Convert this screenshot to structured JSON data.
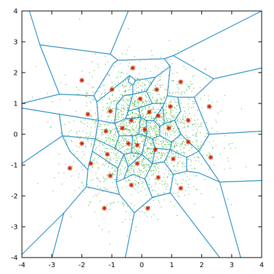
{
  "chart_data": {
    "type": "scatter",
    "title": "",
    "xlabel": "",
    "ylabel": "",
    "xlim": [
      -4,
      4
    ],
    "ylim": [
      -4,
      4
    ],
    "x_ticks": [
      -4,
      -3,
      -2,
      -1,
      0,
      1,
      2,
      3,
      4
    ],
    "y_ticks": [
      -4,
      -3,
      -2,
      -1,
      0,
      1,
      2,
      3,
      4
    ],
    "x_tick_labels": [
      "-4",
      "-3",
      "-2",
      "-1",
      "0",
      "1",
      "2",
      "3",
      "4"
    ],
    "y_tick_labels": [
      "-4",
      "-3",
      "-2",
      "-1",
      "0",
      "1",
      "2",
      "3",
      "4"
    ],
    "grid": false,
    "legend": "none",
    "colors": {
      "centroid": "#cc2200",
      "sample": "#22aa22",
      "voronoi_edge": "#2a8fc4"
    },
    "centroids": [
      {
        "x": -0.3,
        "y": 2.15
      },
      {
        "x": -2.0,
        "y": 1.75
      },
      {
        "x": 1.3,
        "y": 1.7
      },
      {
        "x": -1.0,
        "y": 1.45
      },
      {
        "x": 0.5,
        "y": 1.45
      },
      {
        "x": -0.05,
        "y": 1.15
      },
      {
        "x": 2.25,
        "y": 0.9
      },
      {
        "x": 0.95,
        "y": 0.9
      },
      {
        "x": -1.8,
        "y": 0.65
      },
      {
        "x": -1.05,
        "y": 0.75
      },
      {
        "x": 0.25,
        "y": 0.72
      },
      {
        "x": 0.55,
        "y": 0.6
      },
      {
        "x": -0.35,
        "y": 0.45
      },
      {
        "x": 1.55,
        "y": 0.45
      },
      {
        "x": -0.65,
        "y": 0.2
      },
      {
        "x": -1.2,
        "y": 0.1
      },
      {
        "x": 0.1,
        "y": 0.15
      },
      {
        "x": 0.9,
        "y": 0.2
      },
      {
        "x": -0.45,
        "y": -0.3
      },
      {
        "x": -0.15,
        "y": -0.35
      },
      {
        "x": 0.45,
        "y": -0.5
      },
      {
        "x": 1.55,
        "y": -0.25
      },
      {
        "x": -2.0,
        "y": -0.3
      },
      {
        "x": -1.15,
        "y": -0.65
      },
      {
        "x": 1.05,
        "y": -0.8
      },
      {
        "x": 2.3,
        "y": -0.75
      },
      {
        "x": -0.15,
        "y": -0.95
      },
      {
        "x": -1.7,
        "y": -0.95
      },
      {
        "x": -2.4,
        "y": -1.1
      },
      {
        "x": -1.05,
        "y": -1.35
      },
      {
        "x": 0.55,
        "y": -1.4
      },
      {
        "x": -0.35,
        "y": -1.65
      },
      {
        "x": 1.3,
        "y": -1.75
      },
      {
        "x": -1.25,
        "y": -2.4
      },
      {
        "x": 0.2,
        "y": -2.4
      }
    ],
    "voronoi_edges": [
      [
        [
          -3.75,
          4
        ],
        [
          -3.4,
          2.9
        ]
      ],
      [
        [
          -3.4,
          2.9
        ],
        [
          -1.05,
          2.6
        ]
      ],
      [
        [
          -1.05,
          2.6
        ],
        [
          -0.45,
          4
        ]
      ],
      [
        [
          -1.05,
          2.6
        ],
        [
          -0.8,
          2.4
        ]
      ],
      [
        [
          -0.8,
          2.4
        ],
        [
          -0.95,
          2.3
        ]
      ],
      [
        [
          -0.95,
          2.3
        ],
        [
          -1.6,
          1.25
        ]
      ],
      [
        [
          -3.4,
          2.9
        ],
        [
          -2.75,
          1.3
        ]
      ],
      [
        [
          -2.75,
          1.3
        ],
        [
          -4,
          1.0
        ]
      ],
      [
        [
          -2.75,
          1.3
        ],
        [
          -1.6,
          1.25
        ]
      ],
      [
        [
          -0.8,
          2.4
        ],
        [
          0.75,
          2.45
        ]
      ],
      [
        [
          0.75,
          2.45
        ],
        [
          1.05,
          2.55
        ]
      ],
      [
        [
          1.05,
          2.55
        ],
        [
          4,
          4
        ]
      ],
      [
        [
          1.05,
          2.55
        ],
        [
          2.4,
          1.8
        ]
      ],
      [
        [
          2.4,
          1.8
        ],
        [
          4,
          2.15
        ]
      ],
      [
        [
          0.75,
          2.45
        ],
        [
          0.95,
          2.2
        ]
      ],
      [
        [
          0.95,
          2.2
        ],
        [
          0.85,
          1.25
        ]
      ],
      [
        [
          -1.6,
          1.25
        ],
        [
          -1.5,
          1.05
        ]
      ],
      [
        [
          -1.5,
          1.05
        ],
        [
          -0.4,
          1.9
        ]
      ],
      [
        [
          -0.4,
          1.9
        ],
        [
          -0.45,
          1.7
        ]
      ],
      [
        [
          -0.45,
          1.7
        ],
        [
          -0.3,
          1.6
        ]
      ],
      [
        [
          -0.3,
          1.6
        ],
        [
          -0.2,
          1.75
        ]
      ],
      [
        [
          -0.2,
          1.75
        ],
        [
          0.45,
          1.85
        ]
      ],
      [
        [
          0.45,
          1.85
        ],
        [
          0.95,
          2.2
        ]
      ],
      [
        [
          -0.4,
          1.9
        ],
        [
          -0.2,
          1.75
        ]
      ],
      [
        [
          -1.5,
          1.05
        ],
        [
          -1.45,
          0.45
        ]
      ],
      [
        [
          -1.45,
          0.45
        ],
        [
          -2.75,
          0.65
        ]
      ],
      [
        [
          -2.75,
          0.65
        ],
        [
          -4,
          0.85
        ]
      ],
      [
        [
          -2.75,
          0.65
        ],
        [
          -2.65,
          -0.05
        ]
      ],
      [
        [
          -2.65,
          -0.05
        ],
        [
          -4,
          -0.95
        ]
      ],
      [
        [
          -2.65,
          -0.05
        ],
        [
          -1.55,
          -0.15
        ]
      ],
      [
        [
          -1.55,
          -0.15
        ],
        [
          -1.45,
          0.45
        ]
      ],
      [
        [
          2.4,
          1.8
        ],
        [
          1.75,
          1.2
        ]
      ],
      [
        [
          1.75,
          1.2
        ],
        [
          1.2,
          1.2
        ]
      ],
      [
        [
          1.75,
          1.2
        ],
        [
          2.25,
          0.0
        ]
      ],
      [
        [
          2.25,
          0.0
        ],
        [
          4,
          0.1
        ]
      ],
      [
        [
          2.25,
          0.0
        ],
        [
          1.9,
          -0.55
        ]
      ],
      [
        [
          1.9,
          -0.55
        ],
        [
          2.6,
          -1.55
        ]
      ],
      [
        [
          2.6,
          -1.55
        ],
        [
          4,
          -1.5
        ]
      ],
      [
        [
          2.6,
          -1.55
        ],
        [
          3.3,
          -4
        ]
      ],
      [
        [
          1.9,
          -0.55
        ],
        [
          1.5,
          -0.75
        ]
      ],
      [
        [
          1.5,
          -0.75
        ],
        [
          1.5,
          -1.2
        ]
      ],
      [
        [
          1.5,
          -1.2
        ],
        [
          1.9,
          -1.25
        ]
      ],
      [
        [
          1.9,
          -1.25
        ],
        [
          2.6,
          -1.55
        ]
      ],
      [
        [
          1.5,
          -1.2
        ],
        [
          1.05,
          -1.3
        ]
      ],
      [
        [
          1.05,
          -1.3
        ],
        [
          0.95,
          -1.9
        ]
      ],
      [
        [
          0.95,
          -1.9
        ],
        [
          2.6,
          -4
        ]
      ],
      [
        [
          0.95,
          -1.9
        ],
        [
          0.35,
          -2.05
        ]
      ],
      [
        [
          0.35,
          -2.05
        ],
        [
          -0.25,
          -2.55
        ]
      ],
      [
        [
          -0.25,
          -2.55
        ],
        [
          -0.55,
          -4
        ]
      ],
      [
        [
          -0.25,
          -2.55
        ],
        [
          -0.75,
          -1.95
        ]
      ],
      [
        [
          -0.75,
          -1.95
        ],
        [
          -1.85,
          -1.7
        ]
      ],
      [
        [
          -1.85,
          -1.7
        ],
        [
          -2.6,
          -2.55
        ]
      ],
      [
        [
          -2.6,
          -2.55
        ],
        [
          -4,
          -3.9
        ]
      ],
      [
        [
          -2.6,
          -2.55
        ],
        [
          -3.0,
          -4
        ]
      ],
      [
        [
          -1.85,
          -1.7
        ],
        [
          -1.8,
          -1.15
        ]
      ],
      [
        [
          -1.8,
          -1.15
        ],
        [
          -1.65,
          -0.55
        ]
      ],
      [
        [
          -1.65,
          -0.55
        ],
        [
          -1.55,
          -0.15
        ]
      ],
      [
        [
          -1.8,
          -1.15
        ],
        [
          -2.4,
          -0.55
        ]
      ],
      [
        [
          -2.4,
          -0.55
        ],
        [
          -2.65,
          -0.05
        ]
      ],
      [
        [
          -0.75,
          -1.95
        ],
        [
          -0.85,
          -1.55
        ]
      ],
      [
        [
          0.35,
          -2.05
        ],
        [
          0.1,
          -1.45
        ]
      ],
      [
        [
          -1.6,
          1.25
        ],
        [
          -1.5,
          1.05
        ]
      ],
      [
        [
          -0.85,
          0.95
        ],
        [
          -0.6,
          1.25
        ]
      ],
      [
        [
          -0.6,
          1.25
        ],
        [
          -0.3,
          1.3
        ]
      ],
      [
        [
          -0.3,
          1.3
        ],
        [
          -0.3,
          1.6
        ]
      ],
      [
        [
          -0.3,
          1.3
        ],
        [
          0.15,
          1.4
        ]
      ],
      [
        [
          0.15,
          1.4
        ],
        [
          0.45,
          1.85
        ]
      ],
      [
        [
          0.15,
          1.4
        ],
        [
          0.35,
          1.0
        ]
      ],
      [
        [
          0.35,
          1.0
        ],
        [
          0.75,
          1.0
        ]
      ],
      [
        [
          0.75,
          1.0
        ],
        [
          0.85,
          1.25
        ]
      ],
      [
        [
          0.85,
          1.25
        ],
        [
          1.2,
          1.2
        ]
      ],
      [
        [
          0.75,
          1.0
        ],
        [
          0.7,
          0.9
        ]
      ],
      [
        [
          1.2,
          1.2
        ],
        [
          1.3,
          0.75
        ]
      ],
      [
        [
          1.3,
          0.75
        ],
        [
          1.1,
          0.45
        ]
      ],
      [
        [
          1.1,
          0.45
        ],
        [
          1.3,
          0.0
        ]
      ],
      [
        [
          1.3,
          0.0
        ],
        [
          1.9,
          -0.55
        ]
      ],
      [
        [
          1.3,
          0.0
        ],
        [
          1.0,
          -0.25
        ]
      ],
      [
        [
          1.0,
          -0.25
        ],
        [
          0.95,
          -0.5
        ]
      ],
      [
        [
          0.95,
          -0.5
        ],
        [
          1.5,
          -0.75
        ]
      ],
      [
        [
          0.95,
          -0.5
        ],
        [
          0.75,
          -0.9
        ]
      ],
      [
        [
          0.75,
          -0.9
        ],
        [
          1.05,
          -1.3
        ]
      ],
      [
        [
          0.75,
          -0.9
        ],
        [
          0.35,
          -0.95
        ]
      ],
      [
        [
          0.35,
          -0.95
        ],
        [
          0.1,
          -1.45
        ]
      ],
      [
        [
          0.1,
          -1.45
        ],
        [
          -0.3,
          -1.3
        ]
      ],
      [
        [
          -0.3,
          -1.3
        ],
        [
          -0.6,
          -1.45
        ]
      ],
      [
        [
          -0.6,
          -1.45
        ],
        [
          -0.85,
          -1.55
        ]
      ],
      [
        [
          -0.85,
          -1.55
        ],
        [
          -0.8,
          -1.1
        ]
      ],
      [
        [
          -0.8,
          -1.1
        ],
        [
          -1.65,
          -0.55
        ]
      ],
      [
        [
          -0.6,
          -1.45
        ],
        [
          -0.45,
          -1.05
        ]
      ],
      [
        [
          -0.45,
          -1.05
        ],
        [
          -0.6,
          -0.65
        ]
      ],
      [
        [
          -0.6,
          -0.65
        ],
        [
          -0.8,
          -1.1
        ]
      ],
      [
        [
          -0.6,
          -0.65
        ],
        [
          -0.9,
          -0.45
        ]
      ],
      [
        [
          -0.9,
          -0.45
        ],
        [
          -1.55,
          -0.15
        ]
      ],
      [
        [
          -0.9,
          -0.45
        ],
        [
          -0.75,
          -0.05
        ]
      ],
      [
        [
          -0.75,
          -0.05
        ],
        [
          -0.9,
          0.35
        ]
      ],
      [
        [
          -0.9,
          0.35
        ],
        [
          -1.45,
          0.45
        ]
      ],
      [
        [
          -0.9,
          0.35
        ],
        [
          -0.85,
          0.95
        ]
      ],
      [
        [
          -0.85,
          0.95
        ],
        [
          -0.6,
          1.25
        ]
      ],
      [
        [
          -0.9,
          0.35
        ],
        [
          -0.55,
          0.5
        ]
      ],
      [
        [
          -0.55,
          0.5
        ],
        [
          -0.45,
          0.75
        ]
      ],
      [
        [
          -0.45,
          0.75
        ],
        [
          -0.3,
          1.3
        ]
      ],
      [
        [
          -0.45,
          0.75
        ],
        [
          -0.1,
          0.85
        ]
      ],
      [
        [
          -0.1,
          0.85
        ],
        [
          0.35,
          1.0
        ]
      ],
      [
        [
          -0.1,
          0.85
        ],
        [
          -0.05,
          0.55
        ]
      ],
      [
        [
          -0.05,
          0.55
        ],
        [
          0.15,
          0.45
        ]
      ],
      [
        [
          0.15,
          0.45
        ],
        [
          0.4,
          0.45
        ]
      ],
      [
        [
          0.4,
          0.45
        ],
        [
          0.7,
          0.9
        ]
      ],
      [
        [
          0.4,
          0.45
        ],
        [
          0.6,
          0.25
        ]
      ],
      [
        [
          0.6,
          0.25
        ],
        [
          0.75,
          0.35
        ]
      ],
      [
        [
          0.75,
          0.35
        ],
        [
          1.1,
          0.45
        ]
      ],
      [
        [
          0.75,
          0.35
        ],
        [
          0.7,
          0.9
        ]
      ],
      [
        [
          0.6,
          0.25
        ],
        [
          0.6,
          -0.05
        ]
      ],
      [
        [
          0.6,
          -0.05
        ],
        [
          1.0,
          -0.25
        ]
      ],
      [
        [
          0.6,
          -0.05
        ],
        [
          0.35,
          -0.15
        ]
      ],
      [
        [
          0.35,
          -0.15
        ],
        [
          0.15,
          -0.05
        ]
      ],
      [
        [
          0.15,
          -0.05
        ],
        [
          -0.1,
          0.0
        ]
      ],
      [
        [
          -0.1,
          0.0
        ],
        [
          -0.05,
          0.55
        ]
      ],
      [
        [
          -0.05,
          0.55
        ],
        [
          -0.55,
          0.5
        ]
      ],
      [
        [
          -0.1,
          0.0
        ],
        [
          -0.3,
          -0.05
        ]
      ],
      [
        [
          -0.3,
          -0.05
        ],
        [
          -0.75,
          -0.05
        ]
      ],
      [
        [
          -0.3,
          -0.05
        ],
        [
          -0.35,
          -0.6
        ]
      ],
      [
        [
          -0.35,
          -0.6
        ],
        [
          -0.6,
          -0.65
        ]
      ],
      [
        [
          -0.35,
          -0.6
        ],
        [
          0.0,
          -0.65
        ]
      ],
      [
        [
          0.0,
          -0.65
        ],
        [
          0.15,
          -0.05
        ]
      ],
      [
        [
          0.0,
          -0.65
        ],
        [
          0.35,
          -0.95
        ]
      ],
      [
        [
          0.35,
          -0.15
        ],
        [
          0.45,
          -0.45
        ]
      ],
      [
        [
          0.45,
          -0.45
        ],
        [
          0.95,
          -0.5
        ]
      ],
      [
        [
          0.45,
          -0.45
        ],
        [
          0.35,
          -0.95
        ]
      ],
      [
        [
          -0.45,
          -1.05
        ],
        [
          0.0,
          -0.65
        ]
      ],
      [
        [
          0.15,
          0.45
        ],
        [
          0.15,
          -0.05
        ]
      ]
    ]
  }
}
